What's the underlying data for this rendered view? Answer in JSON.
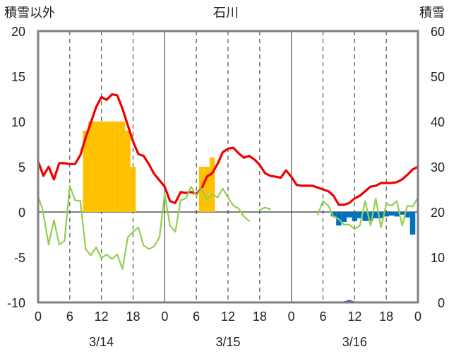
{
  "chart_data": {
    "type": "line",
    "title": "石川",
    "left_axis": {
      "label": "積雪以外",
      "range": [
        -10,
        20
      ],
      "ticks": [
        20,
        15,
        10,
        5,
        0,
        -5,
        -10
      ]
    },
    "right_axis": {
      "label": "積雪",
      "range": [
        0,
        60
      ],
      "ticks": [
        60,
        50,
        40,
        30,
        20,
        10,
        0
      ]
    },
    "x_tick_labels": [
      "0",
      "6",
      "12",
      "18",
      "0",
      "6",
      "12",
      "18",
      "0",
      "6",
      "12",
      "18",
      "0"
    ],
    "dates": [
      "3/14",
      "3/15",
      "3/16"
    ],
    "grid": {
      "vertical_dashed_at_hours": [
        6,
        12,
        18,
        30,
        36,
        42,
        54,
        60,
        66
      ],
      "vertical_solid_at_hours": [
        24,
        48
      ]
    },
    "colors": {
      "temperature": "#ee0000",
      "other_line": "#92d050",
      "snowfall_bars": "#ffc000",
      "negative_bars": "#0070c0",
      "snow_depth": "#7030a0",
      "frame": "#808080"
    },
    "series": [
      {
        "kind": "line",
        "color_key": "temperature",
        "values": [
          [
            0,
            5.6
          ],
          [
            1,
            4
          ],
          [
            2,
            5
          ],
          [
            3,
            3.6
          ],
          [
            4,
            5.4
          ],
          [
            5,
            5.4
          ],
          [
            6,
            5.3
          ],
          [
            7,
            5.3
          ],
          [
            8,
            6.3
          ],
          [
            9,
            8.2
          ],
          [
            10,
            9.9
          ],
          [
            11,
            11.6
          ],
          [
            12,
            12.7
          ],
          [
            13,
            12.4
          ],
          [
            14,
            13
          ],
          [
            15,
            12.9
          ],
          [
            16,
            11.4
          ],
          [
            17,
            9.6
          ],
          [
            18,
            7.8
          ],
          [
            19,
            6.4
          ],
          [
            20,
            6.2
          ],
          [
            21,
            5.3
          ],
          [
            22,
            4.2
          ],
          [
            23,
            3.5
          ],
          [
            24,
            2.8
          ],
          [
            25,
            1.2
          ],
          [
            26,
            1
          ],
          [
            27,
            2.2
          ],
          [
            28,
            2.1
          ],
          [
            29,
            2.2
          ],
          [
            30,
            2
          ],
          [
            31,
            2.6
          ],
          [
            32,
            3.9
          ],
          [
            33,
            4.3
          ],
          [
            34,
            5.3
          ],
          [
            35,
            6.6
          ],
          [
            36,
            7
          ],
          [
            37,
            7.1
          ],
          [
            38,
            6.5
          ],
          [
            39,
            6
          ],
          [
            40,
            6.2
          ],
          [
            41,
            5.8
          ],
          [
            42,
            5.2
          ],
          [
            43,
            4.3
          ],
          [
            44,
            4
          ],
          [
            45,
            3.9
          ],
          [
            46,
            3.8
          ],
          [
            47,
            4.6
          ],
          [
            48,
            3.9
          ],
          [
            49,
            3
          ],
          [
            50,
            2.9
          ],
          [
            51,
            2.9
          ],
          [
            52,
            2.9
          ],
          [
            53,
            2.7
          ],
          [
            54,
            2.5
          ],
          [
            55,
            2.3
          ],
          [
            56,
            1.8
          ],
          [
            57,
            0.8
          ],
          [
            58,
            0.8
          ],
          [
            59,
            1
          ],
          [
            60,
            1.5
          ],
          [
            61,
            1.8
          ],
          [
            62,
            2.3
          ],
          [
            63,
            2.8
          ],
          [
            64,
            2.9
          ],
          [
            65,
            3.2
          ],
          [
            66,
            3.2
          ],
          [
            67,
            3.2
          ],
          [
            68,
            3.3
          ],
          [
            69,
            3.6
          ],
          [
            70,
            4.1
          ],
          [
            71,
            4.7
          ],
          [
            72,
            5
          ]
        ]
      },
      {
        "kind": "line",
        "color_key": "other_line",
        "values": [
          [
            0,
            1.7
          ],
          [
            0.8,
            0.4
          ],
          [
            2,
            -3.6
          ],
          [
            3,
            -0.9
          ],
          [
            4,
            -3.6
          ],
          [
            5,
            -3.2
          ],
          [
            6,
            2.9
          ],
          [
            7,
            1.3
          ],
          [
            8,
            1.2
          ],
          [
            9,
            -4.1
          ],
          [
            10,
            -4.8
          ],
          [
            11,
            -3.9
          ],
          [
            12,
            -5.1
          ],
          [
            13,
            -4.7
          ],
          [
            14,
            -5.2
          ],
          [
            15,
            -4.7
          ],
          [
            16,
            -6.3
          ],
          [
            17,
            -2.8
          ],
          [
            18,
            -2.2
          ],
          [
            19,
            -1.7
          ],
          [
            20,
            -3.7
          ],
          [
            21,
            -4.1
          ],
          [
            22,
            -3.8
          ],
          [
            23,
            -2.8
          ],
          [
            24,
            2
          ],
          [
            25,
            -1.5
          ],
          [
            26,
            -2.2
          ],
          [
            27,
            1.3
          ],
          [
            28,
            1.5
          ],
          [
            29,
            2.8
          ],
          [
            30,
            1.8
          ],
          [
            31,
            2.6
          ],
          [
            32,
            1.3
          ],
          [
            33,
            2
          ],
          [
            34,
            1.6
          ],
          [
            35,
            2.6
          ],
          [
            36,
            1.6
          ],
          [
            37,
            0.7
          ],
          [
            38,
            0.4
          ],
          [
            39,
            -0.5
          ],
          [
            40,
            -1
          ]
        ]
      },
      {
        "kind": "line",
        "color_key": "other_line",
        "values": [
          [
            42,
            0.2
          ],
          [
            43,
            0.5
          ],
          [
            44,
            0.3
          ]
        ]
      },
      {
        "kind": "line",
        "color_key": "other_line",
        "values": [
          [
            53,
            -0.3
          ],
          [
            54,
            1.2
          ],
          [
            55,
            0.7
          ],
          [
            56,
            -0.5
          ],
          [
            57,
            -0.8
          ],
          [
            58,
            -1.4
          ],
          [
            59,
            -1.4
          ],
          [
            60,
            -1.9
          ],
          [
            61,
            -1.5
          ],
          [
            62,
            1.2
          ],
          [
            63,
            -1.5
          ],
          [
            64,
            1.5
          ],
          [
            65,
            -1.7
          ],
          [
            66,
            0.9
          ],
          [
            67,
            0.7
          ],
          [
            68,
            1.2
          ],
          [
            69,
            -1.5
          ],
          [
            70,
            0.7
          ],
          [
            71,
            0.6
          ],
          [
            72,
            1.6
          ]
        ]
      },
      {
        "kind": "line",
        "color_key": "snow_depth",
        "axis": "right",
        "values": [
          [
            0,
            0
          ],
          [
            57,
            0
          ],
          [
            58,
            0
          ],
          [
            59,
            0.3
          ],
          [
            60,
            0
          ],
          [
            72,
            0
          ]
        ]
      },
      {
        "kind": "bar",
        "color_key": "snowfall_bars",
        "values": [
          [
            9,
            9
          ],
          [
            10,
            10
          ],
          [
            11,
            10
          ],
          [
            12,
            10
          ],
          [
            13,
            10
          ],
          [
            14,
            10
          ],
          [
            15,
            10
          ],
          [
            16,
            10
          ],
          [
            17,
            9
          ],
          [
            18,
            5
          ],
          [
            31,
            5
          ],
          [
            32,
            5
          ],
          [
            33,
            6
          ]
        ]
      },
      {
        "kind": "bar",
        "color_key": "negative_bars",
        "values": [
          [
            56,
            -0.5
          ],
          [
            57,
            -1.5
          ],
          [
            58,
            -1.1
          ],
          [
            59,
            -0.6
          ],
          [
            60,
            -1
          ],
          [
            61,
            -0.7
          ],
          [
            62,
            -1
          ],
          [
            63,
            -1
          ],
          [
            64,
            -0.7
          ],
          [
            65,
            -0.7
          ],
          [
            66,
            -0.5
          ],
          [
            67,
            -0.4
          ],
          [
            68,
            -0.5
          ],
          [
            69,
            -0.3
          ],
          [
            70,
            -0.6
          ],
          [
            71,
            -2.5
          ]
        ]
      }
    ]
  }
}
